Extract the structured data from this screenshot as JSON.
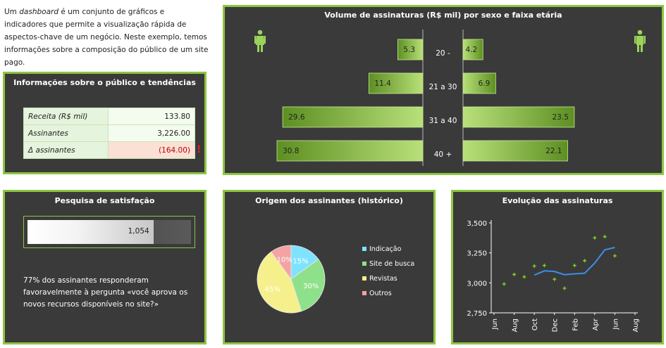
{
  "intro": {
    "prefix": "Um ",
    "keyword": "dashboard",
    "suffix": " é um conjunto de gráficos e indicadores que permite a visualização rápida de aspectos-chave de um negócio. Neste exemplo, temos informações sobre a composição do público de um site pago."
  },
  "info": {
    "title": "Informações sobre o público e tendências",
    "rows": [
      {
        "label": "Receita (R$ mil)",
        "value": "133.80"
      },
      {
        "label": "Assinantes",
        "value": "3,226.00"
      },
      {
        "label": "Δ assinantes",
        "value": "(164.00)"
      }
    ],
    "warning_icon": "exclamation-icon",
    "warning_glyph": "!"
  },
  "survey": {
    "title": "Pesquisa de satisfação",
    "value_label": "1,054",
    "fill_fraction": 0.77,
    "text": "77% dos assinantes responderam favoravelmente à pergunta «você aprova os novos recursos disponíveis no site?»"
  },
  "colors": {
    "panel_bg": "#3a3a3a",
    "accent": "#8cc63f",
    "bar_green": "#8cc63f",
    "line_blue": "#3b8fe8",
    "marker_green": "#7ed321",
    "negative": "#c00000"
  },
  "chart_data": [
    {
      "type": "bar",
      "title": "Volume de assinaturas (R$ mil) por sexo e faixa etária",
      "categories": [
        "20 -",
        "21 a 30",
        "31 a 40",
        "40 +"
      ],
      "series": [
        {
          "values": [
            5.3,
            11.4,
            29.6,
            30.8
          ],
          "icon": "female-icon"
        },
        {
          "values": [
            4.2,
            6.9,
            23.5,
            22.1
          ],
          "icon": "male-icon"
        }
      ],
      "xlim": [
        0,
        32
      ]
    },
    {
      "type": "pie",
      "title": "Origem dos assinantes (histórico)",
      "slices": [
        {
          "label": "Indicação",
          "value": 15,
          "text": "15%",
          "color": "#7fe3ff"
        },
        {
          "label": "Site de busca",
          "value": 30,
          "text": "30%",
          "color": "#8fe08a"
        },
        {
          "label": "Revistas",
          "value": 45,
          "text": "45%",
          "color": "#f6f08c"
        },
        {
          "label": "Outros",
          "value": 10,
          "text": "10%",
          "color": "#f5a2a2"
        }
      ],
      "legend": "right"
    },
    {
      "type": "line",
      "title": "Evolução das assinaturas",
      "x": [
        "Jun",
        "Jul",
        "Aug",
        "Sep",
        "Oct",
        "Nov",
        "Dec",
        "Jan",
        "Feb",
        "Mar",
        "Apr",
        "May",
        "Jun",
        "Jul",
        "Aug"
      ],
      "xtick_labels": [
        "Jun",
        "Aug",
        "Oct",
        "Dec",
        "Feb",
        "Apr",
        "Jun",
        "Aug"
      ],
      "ylim": [
        2750,
        3500
      ],
      "yticks": [
        "2,750",
        "3,000",
        "3,250",
        "3,500"
      ],
      "series": [
        {
          "style": "markers",
          "values": [
            null,
            2990,
            3070,
            3050,
            3140,
            3145,
            3030,
            2955,
            3145,
            3185,
            3375,
            3385,
            3225,
            null,
            null
          ]
        },
        {
          "style": "line",
          "values": [
            null,
            null,
            null,
            null,
            3065,
            3100,
            3095,
            3068,
            3075,
            3080,
            3165,
            3275,
            3295,
            null,
            null
          ]
        }
      ],
      "grid": false
    }
  ]
}
